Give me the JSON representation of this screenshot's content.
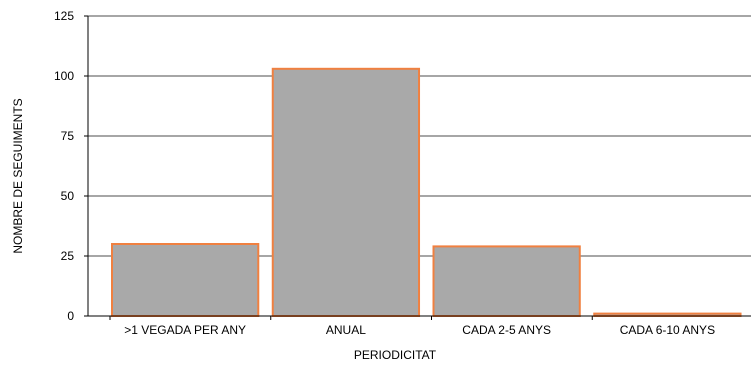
{
  "chart_data": {
    "type": "bar",
    "categories": [
      ">1 VEGADA PER ANY",
      "ANUAL",
      "CADA 2-5 ANYS",
      "CADA 6-10 ANYS"
    ],
    "values": [
      30,
      103,
      29,
      1
    ],
    "title": "",
    "xlabel": "PERIODICITAT",
    "ylabel": "NOMBRE DE SEGUIMENTS",
    "ylim": [
      0,
      125
    ],
    "yticks": [
      0,
      25,
      50,
      75,
      100,
      125
    ],
    "grid": true,
    "bar_fill": "#a9a9a9",
    "bar_stroke": "#f08040",
    "grid_color": "#a6a6a6"
  }
}
